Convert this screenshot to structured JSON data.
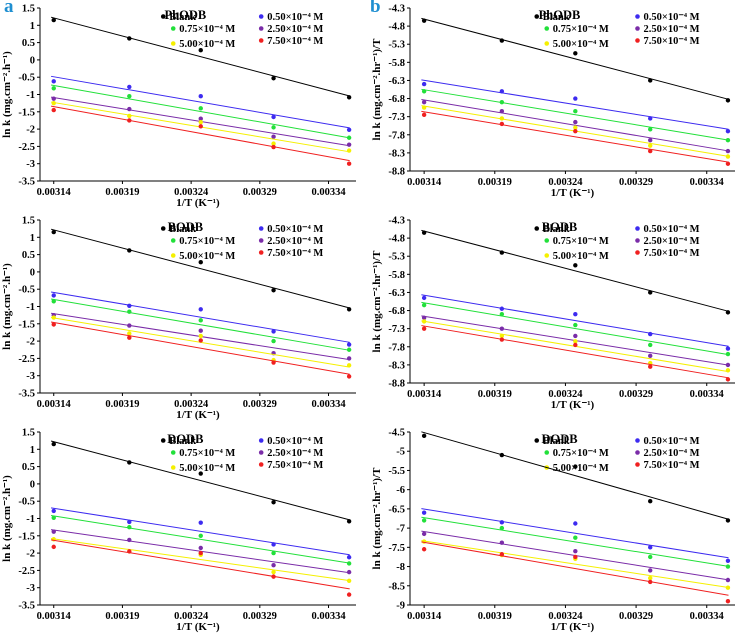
{
  "figure": {
    "panel_labels": [
      "a",
      "b"
    ],
    "panel_label_color": "#1f8fd1",
    "legend_labels": [
      "Blank",
      "0.50×10⁻⁴ M",
      "0.75×10⁻⁴ M",
      "2.50×10⁻⁴ M",
      "5.00×10⁻⁴ M",
      "7.50×10⁻⁴ M"
    ],
    "series_colors": [
      "#000000",
      "#3d2bf0",
      "#22e03a",
      "#7a2ca8",
      "#f5f000",
      "#f02020"
    ],
    "x_label": "1/T (K⁻¹)",
    "x_ticks": [
      0.00314,
      0.00319,
      0.00324,
      0.00329,
      0.00334
    ],
    "x_tick_labels": [
      "0.00314",
      "0.00319",
      "0.00324",
      "0.00329",
      "0.00334"
    ]
  },
  "chart_data": [
    {
      "id": "a1",
      "type": "scatter",
      "title": "PhODB",
      "xlabel": "1/T (K⁻¹)",
      "ylabel": "ln k (mg.cm⁻².h⁻¹)",
      "x": [
        0.00314,
        0.003195,
        0.003247,
        0.0033,
        0.003355
      ],
      "xlim": [
        0.00313,
        0.00336
      ],
      "ylim": [
        -3.5,
        1.5
      ],
      "yticks": [
        1.5,
        1,
        0.5,
        0,
        -0.5,
        -1,
        -1.5,
        -2,
        -2.5,
        -3,
        -3.5
      ],
      "ytick_labels": [
        "1.5",
        "1",
        "0.5",
        "0",
        "-0.5",
        "-1",
        "-1.5",
        "-2",
        "-2.5",
        "-3",
        "-3.5"
      ],
      "series": [
        {
          "name": "Blank",
          "values": [
            1.15,
            0.62,
            0.28,
            -0.53,
            -1.08
          ]
        },
        {
          "name": "0.50×10⁻⁴ M",
          "values": [
            -0.62,
            -0.78,
            -1.05,
            -1.65,
            -2.02
          ]
        },
        {
          "name": "0.75×10⁻⁴ M",
          "values": [
            -0.82,
            -1.05,
            -1.4,
            -1.95,
            -2.25
          ]
        },
        {
          "name": "2.50×10⁻⁴ M",
          "values": [
            -1.12,
            -1.42,
            -1.7,
            -2.22,
            -2.45
          ]
        },
        {
          "name": "5.00×10⁻⁴ M",
          "values": [
            -1.25,
            -1.62,
            -1.8,
            -2.42,
            -2.62
          ]
        },
        {
          "name": "7.50×10⁻⁴ M",
          "values": [
            -1.45,
            -1.75,
            -1.92,
            -2.52,
            -3.0
          ]
        }
      ]
    },
    {
      "id": "b1",
      "type": "scatter",
      "title": "PhODB",
      "xlabel": "1/T (K⁻¹)",
      "ylabel": "ln k (mg.cm⁻².hr⁻¹)/T",
      "x": [
        0.00314,
        0.003195,
        0.003247,
        0.0033,
        0.003355
      ],
      "xlim": [
        0.00313,
        0.00336
      ],
      "ylim": [
        -8.8,
        -4.3
      ],
      "yticks": [
        -4.3,
        -4.8,
        -5.3,
        -5.8,
        -6.3,
        -6.8,
        -7.3,
        -7.8,
        -8.3,
        -8.8
      ],
      "ytick_labels": [
        "-4.3",
        "-4.8",
        "-5.3",
        "-5.8",
        "-6.3",
        "-6.8",
        "-7.3",
        "-7.8",
        "-8.3",
        "-8.8"
      ],
      "series": [
        {
          "name": "Blank",
          "values": [
            -4.65,
            -5.2,
            -5.55,
            -6.3,
            -6.85
          ]
        },
        {
          "name": "0.50×10⁻⁴ M",
          "values": [
            -6.4,
            -6.6,
            -6.8,
            -7.35,
            -7.7
          ]
        },
        {
          "name": "0.75×10⁻⁴ M",
          "values": [
            -6.6,
            -6.9,
            -7.15,
            -7.65,
            -7.95
          ]
        },
        {
          "name": "2.50×10⁻⁴ M",
          "values": [
            -6.9,
            -7.15,
            -7.45,
            -7.95,
            -8.25
          ]
        },
        {
          "name": "5.00×10⁻⁴ M",
          "values": [
            -7.05,
            -7.35,
            -7.6,
            -8.1,
            -8.4
          ]
        },
        {
          "name": "7.50×10⁻⁴ M",
          "values": [
            -7.25,
            -7.5,
            -7.7,
            -8.25,
            -8.6
          ]
        }
      ]
    },
    {
      "id": "a2",
      "type": "scatter",
      "title": "BODB",
      "xlabel": "1/T (K⁻¹)",
      "ylabel": "ln k (mg.cm⁻².h⁻¹)",
      "x": [
        0.00314,
        0.003195,
        0.003247,
        0.0033,
        0.003355
      ],
      "xlim": [
        0.00313,
        0.00336
      ],
      "ylim": [
        -3.5,
        1.5
      ],
      "yticks": [
        1.5,
        1,
        0.5,
        0,
        -0.5,
        -1,
        -1.5,
        -2,
        -2.5,
        -3,
        -3.5
      ],
      "ytick_labels": [
        "1.5",
        "1",
        "0.5",
        "0",
        "-0.5",
        "-1",
        "-1.5",
        "-2",
        "-2.5",
        "-3",
        "-3.5"
      ],
      "series": [
        {
          "name": "Blank",
          "values": [
            1.15,
            0.62,
            0.28,
            -0.53,
            -1.08
          ]
        },
        {
          "name": "0.50×10⁻⁴ M",
          "values": [
            -0.68,
            -0.98,
            -1.08,
            -1.72,
            -2.1
          ]
        },
        {
          "name": "0.75×10⁻⁴ M",
          "values": [
            -0.85,
            -1.15,
            -1.4,
            -2.0,
            -2.25
          ]
        },
        {
          "name": "2.50×10⁻⁴ M",
          "values": [
            -1.25,
            -1.55,
            -1.7,
            -2.35,
            -2.5
          ]
        },
        {
          "name": "5.00×10⁻⁴ M",
          "values": [
            -1.32,
            -1.78,
            -1.85,
            -2.55,
            -2.7
          ]
        },
        {
          "name": "7.50×10⁻⁴ M",
          "values": [
            -1.52,
            -1.9,
            -1.98,
            -2.62,
            -3.02
          ]
        }
      ]
    },
    {
      "id": "b2",
      "type": "scatter",
      "title": "BODB",
      "xlabel": "1/T (K⁻¹)",
      "ylabel": "ln k (mg.cm⁻².hr⁻¹)/T",
      "x": [
        0.00314,
        0.003195,
        0.003247,
        0.0033,
        0.003355
      ],
      "xlim": [
        0.00313,
        0.00336
      ],
      "ylim": [
        -8.8,
        -4.3
      ],
      "yticks": [
        -4.3,
        -4.8,
        -5.3,
        -5.8,
        -6.3,
        -6.8,
        -7.3,
        -7.8,
        -8.3,
        -8.8
      ],
      "ytick_labels": [
        "-4.3",
        "-4.8",
        "-5.3",
        "-5.8",
        "-6.3",
        "-6.8",
        "-7.3",
        "-7.8",
        "-8.3",
        "-8.8"
      ],
      "series": [
        {
          "name": "Blank",
          "values": [
            -4.65,
            -5.2,
            -5.55,
            -6.3,
            -6.85
          ]
        },
        {
          "name": "0.50×10⁻⁴ M",
          "values": [
            -6.45,
            -6.75,
            -6.9,
            -7.45,
            -7.85
          ]
        },
        {
          "name": "0.75×10⁻⁴ M",
          "values": [
            -6.65,
            -6.9,
            -7.2,
            -7.75,
            -8.0
          ]
        },
        {
          "name": "2.50×10⁻⁴ M",
          "values": [
            -7.0,
            -7.3,
            -7.5,
            -8.05,
            -8.3
          ]
        },
        {
          "name": "5.00×10⁻⁴ M",
          "values": [
            -7.1,
            -7.5,
            -7.65,
            -8.25,
            -8.45
          ]
        },
        {
          "name": "7.50×10⁻⁴ M",
          "values": [
            -7.3,
            -7.6,
            -7.75,
            -8.35,
            -8.7
          ]
        }
      ]
    },
    {
      "id": "a3",
      "type": "scatter",
      "title": "DODB",
      "xlabel": "1/T (K⁻¹)",
      "ylabel": "ln k (mg.cm⁻².h⁻¹)",
      "x": [
        0.00314,
        0.003195,
        0.003247,
        0.0033,
        0.003355
      ],
      "xlim": [
        0.00313,
        0.00336
      ],
      "ylim": [
        -3.5,
        1.5
      ],
      "yticks": [
        1.5,
        1,
        0.5,
        0,
        -0.5,
        -1,
        -1.5,
        -2,
        -2.5,
        -3,
        -3.5
      ],
      "ytick_labels": [
        "1.5",
        "1",
        "0.5",
        "0",
        "-0.5",
        "-1",
        "-1.5",
        "-2",
        "-2.5",
        "-3",
        "-3.5"
      ],
      "series": [
        {
          "name": "Blank",
          "values": [
            1.15,
            0.62,
            0.3,
            -0.53,
            -1.08
          ]
        },
        {
          "name": "0.50×10⁻⁴ M",
          "values": [
            -0.78,
            -1.1,
            -1.12,
            -1.75,
            -2.12
          ]
        },
        {
          "name": "0.75×10⁻⁴ M",
          "values": [
            -0.98,
            -1.25,
            -1.5,
            -2.0,
            -2.3
          ]
        },
        {
          "name": "2.50×10⁻⁴ M",
          "values": [
            -1.38,
            -1.62,
            -1.85,
            -2.35,
            -2.55
          ]
        },
        {
          "name": "5.00×10⁻⁴ M",
          "values": [
            -1.6,
            -1.95,
            -2.05,
            -2.55,
            -2.8
          ]
        },
        {
          "name": "7.50×10⁻⁴ M",
          "values": [
            -1.82,
            -1.95,
            -2.0,
            -2.68,
            -3.2
          ]
        }
      ]
    },
    {
      "id": "b3",
      "type": "scatter",
      "title": "DODB",
      "xlabel": "1/T (K⁻¹)",
      "ylabel": "ln k (mg.cm⁻².hr⁻¹)/T",
      "x": [
        0.00314,
        0.003195,
        0.003247,
        0.0033,
        0.003355
      ],
      "xlim": [
        0.00313,
        0.00336
      ],
      "ylim": [
        -9,
        -4.5
      ],
      "yticks": [
        -4.5,
        -5,
        -5.5,
        -6,
        -6.5,
        -7,
        -7.5,
        -8,
        -8.5,
        -9
      ],
      "ytick_labels": [
        "-4.5",
        "-5",
        "-5.5",
        "-6",
        "-6.5",
        "-7",
        "-7.5",
        "-8",
        "-8.5",
        "-9"
      ],
      "series": [
        {
          "name": "Blank",
          "values": [
            -4.6,
            -5.1,
            -5.4,
            -6.3,
            -6.8
          ]
        },
        {
          "name": "0.50×10⁻⁴ M",
          "values": [
            -6.6,
            -6.85,
            -6.88,
            -7.5,
            -7.85
          ]
        },
        {
          "name": "0.75×10⁻⁴ M",
          "values": [
            -6.8,
            -7.0,
            -7.25,
            -7.75,
            -8.0
          ]
        },
        {
          "name": "2.50×10⁻⁴ M",
          "values": [
            -7.15,
            -7.38,
            -7.6,
            -8.1,
            -8.35
          ]
        },
        {
          "name": "5.00×10⁻⁴ M",
          "values": [
            -7.35,
            -7.7,
            -7.8,
            -8.3,
            -8.55
          ]
        },
        {
          "name": "7.50×10⁻⁴ M",
          "values": [
            -7.55,
            -7.68,
            -7.75,
            -8.4,
            -8.9
          ]
        }
      ]
    }
  ]
}
